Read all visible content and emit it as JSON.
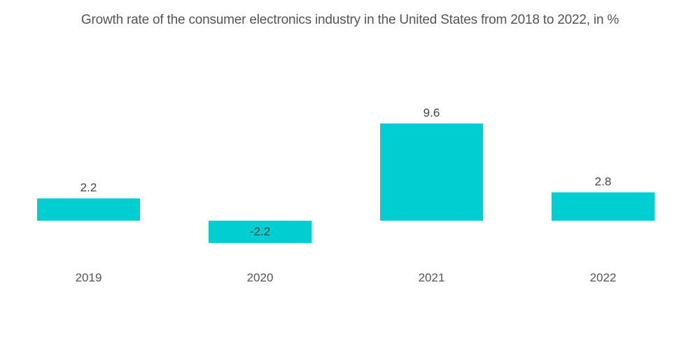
{
  "chart_data": {
    "type": "bar",
    "title": "Growth rate of the consumer electronics industry in the United States from 2018 to 2022, in %",
    "categories": [
      "2019",
      "2020",
      "2021",
      "2022"
    ],
    "values": [
      2.2,
      -2.2,
      9.6,
      2.8
    ],
    "data_labels": [
      "2.2",
      "-2.2",
      "9.6",
      "2.8"
    ],
    "xlabel": "",
    "ylabel": "",
    "ylim": [
      -2.2,
      9.6
    ],
    "grid": false,
    "legend": "none",
    "bar_color": "#00CED1"
  }
}
